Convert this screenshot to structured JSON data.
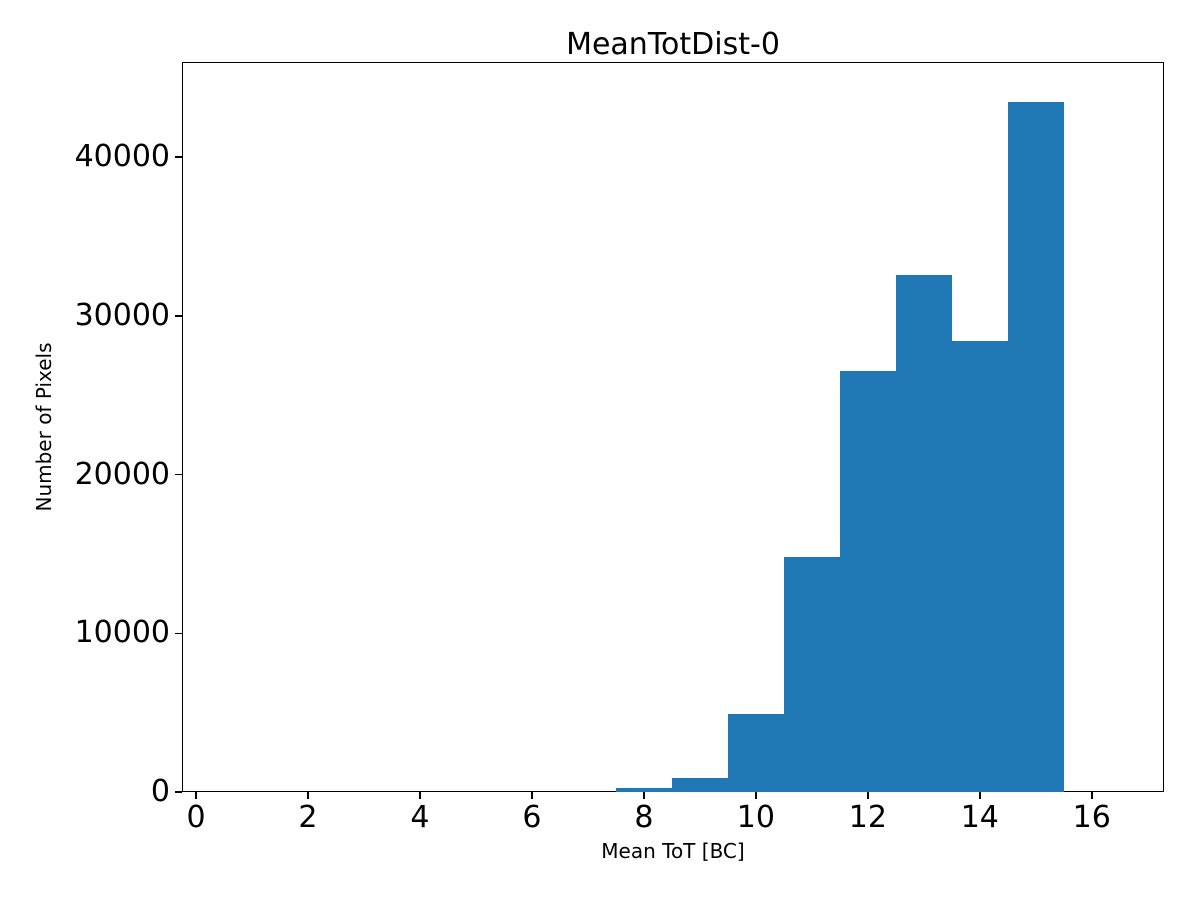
{
  "chart_data": {
    "type": "bar",
    "subtype": "histogram",
    "title": "MeanTotDist-0",
    "xlabel": "Mean ToT [BC]",
    "ylabel": "Number of Pixels",
    "bar_color": "#1f77b4",
    "axis_color": "#000000",
    "background_color": "#ffffff",
    "grid": false,
    "legend_position": "none",
    "bin_edges": [
      7.5,
      8.5,
      9.5,
      10.5,
      11.5,
      12.5,
      13.5,
      14.5,
      15.5
    ],
    "bin_centers": [
      8,
      9,
      10,
      11,
      12,
      13,
      14,
      15
    ],
    "values": [
      250,
      900,
      4900,
      14800,
      26500,
      32600,
      28400,
      43500
    ],
    "xlim": [
      -0.25,
      17.29
    ],
    "ylim": [
      0,
      46000
    ],
    "x_ticks": [
      0,
      2,
      4,
      6,
      8,
      10,
      12,
      14,
      16
    ],
    "y_ticks": [
      0,
      10000,
      20000,
      30000,
      40000
    ]
  }
}
